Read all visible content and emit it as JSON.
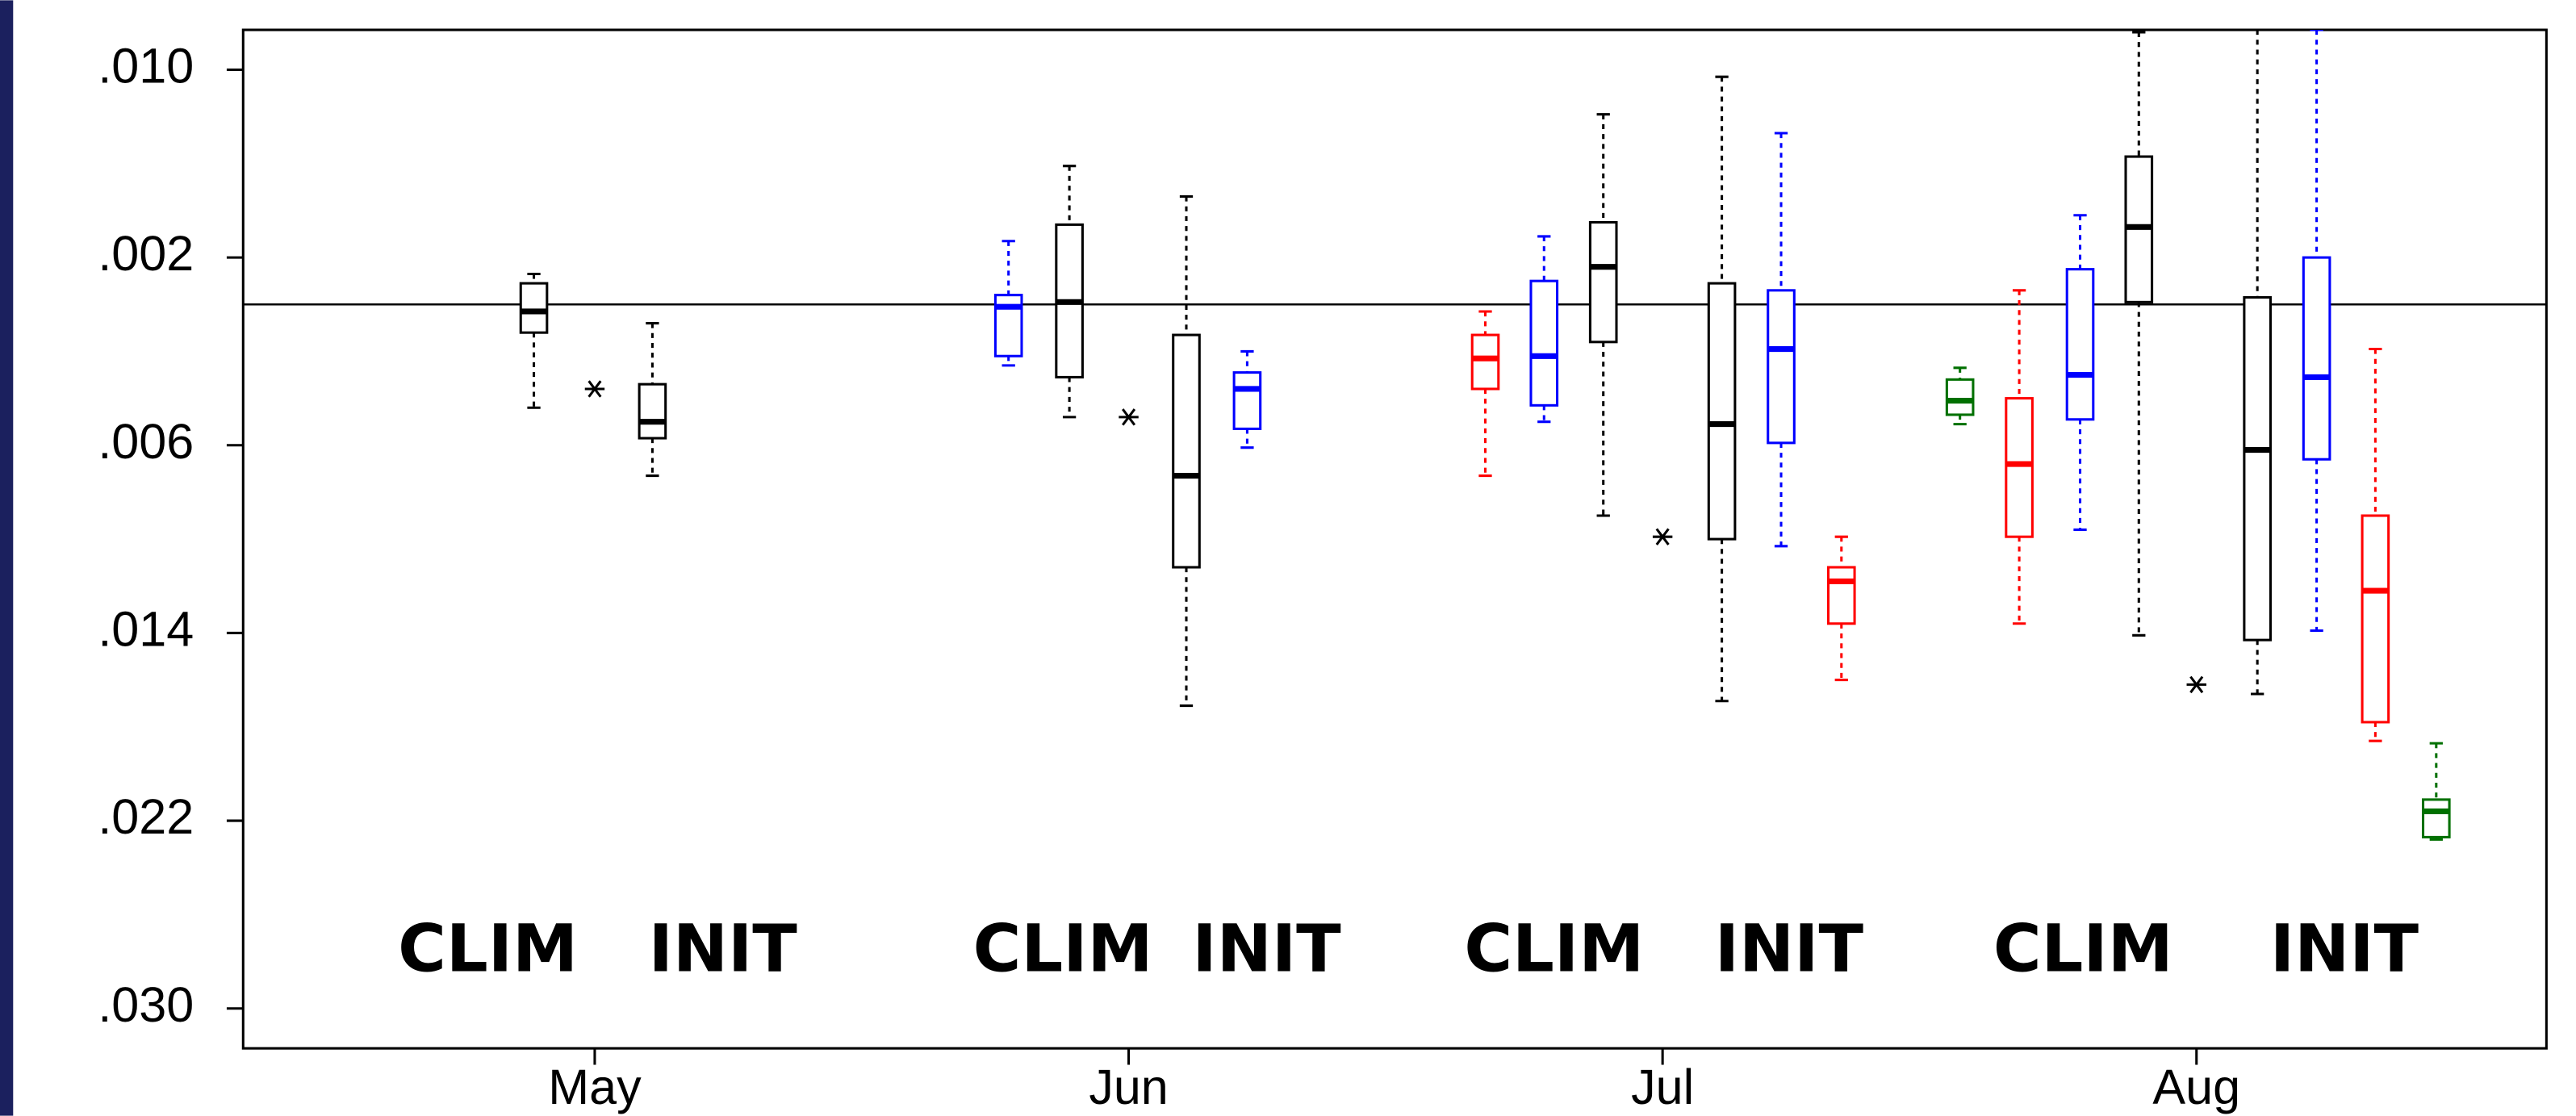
{
  "chart_data": {
    "type": "box",
    "xlim": [
      4.3415,
      8.6554
    ],
    "xticks": [
      {
        "value": 5,
        "label": "May"
      },
      {
        "value": 6,
        "label": "Jun"
      },
      {
        "value": 7,
        "label": "Jul"
      },
      {
        "value": 8,
        "label": "Aug"
      }
    ],
    "ylim": [
      -0.0117,
      0.0317
    ],
    "y_inverted": true,
    "yticks": [
      {
        "value": -0.01,
        "label": ".010"
      },
      {
        "value": -0.002,
        "label": ".002"
      },
      {
        "value": 0.006,
        "label": ".006"
      },
      {
        "value": 0.014,
        "label": ".014"
      },
      {
        "value": 0.022,
        "label": ".022"
      },
      {
        "value": 0.03,
        "label": ".030"
      }
    ],
    "hline": 0,
    "boxes": [
      {
        "x": 4.886,
        "color": "#000000",
        "lo": -0.0013,
        "q1": -0.0009,
        "med": 0.0003,
        "q3": 0.0012,
        "hi": 0.0044
      },
      {
        "x": 5.108,
        "color": "#000000",
        "lo": 0.0008,
        "q1": 0.0034,
        "med": 0.005,
        "q3": 0.0057,
        "hi": 0.0073
      },
      {
        "x": 5.775,
        "color": "#0000ff",
        "lo": -0.0027,
        "q1": -0.0004,
        "med": 0.0001,
        "q3": 0.0022,
        "hi": 0.0026
      },
      {
        "x": 5.889,
        "color": "#000000",
        "lo": -0.0059,
        "q1": -0.0034,
        "med": -0.0001,
        "q3": 0.0031,
        "hi": 0.0048
      },
      {
        "x": 6.108,
        "color": "#000000",
        "lo": -0.0046,
        "q1": 0.0013,
        "med": 0.0073,
        "q3": 0.0112,
        "hi": 0.0171
      },
      {
        "x": 6.222,
        "color": "#0000ff",
        "lo": 0.002,
        "q1": 0.0029,
        "med": 0.0036,
        "q3": 0.0053,
        "hi": 0.0061
      },
      {
        "x": 6.668,
        "color": "#ff0000",
        "lo": 0.0003,
        "q1": 0.0013,
        "med": 0.0023,
        "q3": 0.0036,
        "hi": 0.0073
      },
      {
        "x": 6.778,
        "color": "#0000ff",
        "lo": -0.0029,
        "q1": -0.001,
        "med": 0.0022,
        "q3": 0.0043,
        "hi": 0.005
      },
      {
        "x": 6.889,
        "color": "#000000",
        "lo": -0.0081,
        "q1": -0.0035,
        "med": -0.0016,
        "q3": 0.0016,
        "hi": 0.009
      },
      {
        "x": 7.111,
        "color": "#000000",
        "lo": -0.0097,
        "q1": -0.0009,
        "med": 0.0051,
        "q3": 0.01,
        "hi": 0.0169
      },
      {
        "x": 7.222,
        "color": "#0000ff",
        "lo": -0.0073,
        "q1": -0.0006,
        "med": 0.0019,
        "q3": 0.0059,
        "hi": 0.0103
      },
      {
        "x": 7.335,
        "color": "#ff0000",
        "lo": 0.0099,
        "q1": 0.0112,
        "med": 0.0118,
        "q3": 0.0136,
        "hi": 0.016
      },
      {
        "x": 7.557,
        "color": "#007000",
        "lo": 0.0027,
        "q1": 0.0032,
        "med": 0.0041,
        "q3": 0.0047,
        "hi": 0.0051
      },
      {
        "x": 7.668,
        "color": "#ff0000",
        "lo": -0.0006,
        "q1": 0.004,
        "med": 0.0068,
        "q3": 0.0099,
        "hi": 0.0136
      },
      {
        "x": 7.782,
        "color": "#0000ff",
        "lo": -0.0038,
        "q1": -0.0015,
        "med": 0.003,
        "q3": 0.0049,
        "hi": 0.0096
      },
      {
        "x": 7.892,
        "color": "#000000",
        "lo": -0.0116,
        "q1": -0.0063,
        "med": -0.0033,
        "q3": -0.0001,
        "hi": 0.0141
      },
      {
        "x": 8.114,
        "color": "#000000",
        "lo": -0.0117,
        "q1": -0.0003,
        "med": 0.0062,
        "q3": 0.0143,
        "hi": 0.0166
      },
      {
        "x": 8.225,
        "color": "#0000ff",
        "lo": -0.0117,
        "q1": -0.002,
        "med": 0.0031,
        "q3": 0.0066,
        "hi": 0.0139
      },
      {
        "x": 8.335,
        "color": "#ff0000",
        "lo": 0.0019,
        "q1": 0.009,
        "med": 0.0122,
        "q3": 0.0178,
        "hi": 0.0186
      },
      {
        "x": 8.449,
        "color": "#007000",
        "lo": 0.0187,
        "q1": 0.0211,
        "med": 0.0216,
        "q3": 0.0227,
        "hi": 0.0228
      }
    ],
    "points": [
      {
        "x": 5.0,
        "y": 0.0036
      },
      {
        "x": 6.0,
        "y": 0.0048
      },
      {
        "x": 7.0,
        "y": 0.0099
      },
      {
        "x": 8.0,
        "y": 0.0162
      }
    ],
    "annotations": [
      "CLIM",
      "INIT",
      "CLIM",
      "INIT",
      "CLIM",
      "INIT",
      "CLIM",
      "INIT"
    ]
  }
}
